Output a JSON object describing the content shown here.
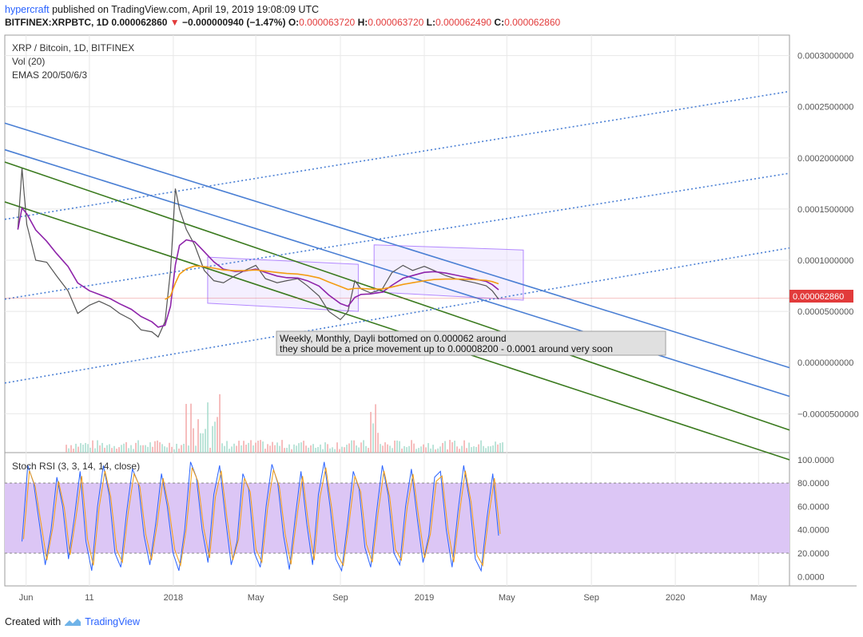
{
  "header": {
    "author": "hypercraft",
    "published": "published on TradingView.com, April 19, 2019 19:08:09 UTC"
  },
  "ohlc": {
    "symbol": "BITFINEX:XRPBTC, 1D",
    "last": "0.000062860",
    "arrow": "▼",
    "change": "−0.000000940 (−1.47%)",
    "o_label": "O:",
    "o": "0.000063720",
    "h_label": "H:",
    "h": "0.000063720",
    "l_label": "L:",
    "l": "0.000062490",
    "c_label": "C:",
    "c": "0.000062860"
  },
  "legend": {
    "pair": "XRP / Bitcoin, 1D, BITFINEX",
    "vol": "Vol (20)",
    "emas": "EMAS 200/50/6/3"
  },
  "annotation": {
    "line1": "Weekly, Monthly, Dayli bottomed on 0.000062 around",
    "line2": "they should be a price movement up to 0.00008200 - 0.0001 around very soon"
  },
  "price_tag": "0.000062860",
  "footer": {
    "created": "Created with",
    "brand": "TradingView"
  },
  "colors": {
    "grid": "#e8e8e8",
    "axis": "#555555",
    "price_line": "#e23b3b",
    "blue": "#4a7fd4",
    "green": "#3a7a1e",
    "ema_orange": "#f39c12",
    "ema_purple": "#8e24aa",
    "box": "#b388ff",
    "rsi_blue": "#2962ff",
    "rsi_orange": "#f39c12"
  },
  "chart_data": [
    {
      "type": "line",
      "title": "XRP / Bitcoin, 1D, BITFINEX",
      "x_ticks": [
        "Jun",
        "11",
        "2018",
        "May",
        "Sep",
        "2019",
        "May",
        "Sep",
        "2020",
        "May"
      ],
      "y_ticks": [
        "0.0003000000",
        "0.0002500000",
        "0.0002000000",
        "0.0001500000",
        "0.0001000000",
        "0.0000500000",
        "0.0000000000",
        "−0.0000500000"
      ],
      "ylim": [
        -8.8e-05,
        0.00032
      ],
      "series": [
        {
          "name": "XRP / Bitcoin",
          "x": [
            "2017-05-20",
            "2017-05-26",
            "2017-06-02",
            "2017-06-15",
            "2017-07-01",
            "2017-07-15",
            "2017-08-01",
            "2017-08-15",
            "2017-09-01",
            "2017-09-15",
            "2017-10-01",
            "2017-10-15",
            "2017-11-01",
            "2017-11-15",
            "2017-12-01",
            "2017-12-10",
            "2017-12-20",
            "2017-12-28",
            "2018-01-04",
            "2018-01-10",
            "2018-01-20",
            "2018-02-01",
            "2018-02-15",
            "2018-03-01",
            "2018-03-15",
            "2018-04-01",
            "2018-04-15",
            "2018-05-01",
            "2018-05-15",
            "2018-06-01",
            "2018-06-15",
            "2018-07-01",
            "2018-07-15",
            "2018-08-01",
            "2018-08-15",
            "2018-09-01",
            "2018-09-12",
            "2018-09-22",
            "2018-10-01",
            "2018-10-15",
            "2018-11-01",
            "2018-11-15",
            "2018-12-01",
            "2018-12-15",
            "2019-01-01",
            "2019-01-15",
            "2019-02-01",
            "2019-02-15",
            "2019-03-01",
            "2019-03-15",
            "2019-04-01",
            "2019-04-10",
            "2019-04-19"
          ],
          "y": [
            0.00013,
            0.00019,
            0.000135,
            0.0001,
            9.8e-05,
            8.5e-05,
            7e-05,
            4.8e-05,
            5.6e-05,
            6e-05,
            5.5e-05,
            4.8e-05,
            4.2e-05,
            3.2e-05,
            3e-05,
            2.5e-05,
            4e-05,
            9e-05,
            0.00017,
            0.00015,
            0.00013,
            0.000115,
            9e-05,
            8e-05,
            7.8e-05,
            8.5e-05,
            9e-05,
            9.5e-05,
            8.2e-05,
            7.8e-05,
            8e-05,
            8.2e-05,
            7.5e-05,
            6.5e-05,
            5e-05,
            4.2e-05,
            5e-05,
            8e-05,
            7.2e-05,
            6.8e-05,
            7.2e-05,
            8.8e-05,
            9.5e-05,
            9e-05,
            9.4e-05,
            9e-05,
            8.5e-05,
            8.2e-05,
            8e-05,
            7.8e-05,
            7.5e-05,
            7e-05,
            6.2e-05
          ]
        }
      ],
      "annotations": [
        "Weekly, Monthly, Dayli bottomed on 0.000062 around",
        "they should be a price movement up to 0.00008200 - 0.0001 around very soon"
      ]
    },
    {
      "type": "line",
      "title": "Stoch RSI (3, 3, 14, 14, close)",
      "y_ticks": [
        "100.0000",
        "80.0000",
        "60.0000",
        "40.0000",
        "20.0000",
        "0.0000"
      ],
      "ylim": [
        -8,
        106
      ],
      "band": [
        20,
        80
      ],
      "series": [
        {
          "name": "Stoch RSI",
          "values": [
            30,
            95,
            80,
            45,
            10,
            40,
            85,
            60,
            15,
            50,
            90,
            30,
            5,
            60,
            95,
            70,
            20,
            8,
            55,
            92,
            80,
            35,
            10,
            45,
            88,
            60,
            20,
            5,
            40,
            98,
            85,
            40,
            12,
            70,
            95,
            50,
            10,
            30,
            88,
            75,
            20,
            8,
            60,
            96,
            80,
            35,
            6,
            50,
            90,
            45,
            10,
            70,
            98,
            60,
            15,
            5,
            45,
            90,
            75,
            25,
            8,
            55,
            95,
            70,
            20,
            10,
            60,
            92,
            50,
            12,
            35,
            85,
            90,
            40,
            8,
            55,
            95,
            65,
            15,
            5,
            50,
            88,
            35
          ]
        }
      ]
    }
  ]
}
